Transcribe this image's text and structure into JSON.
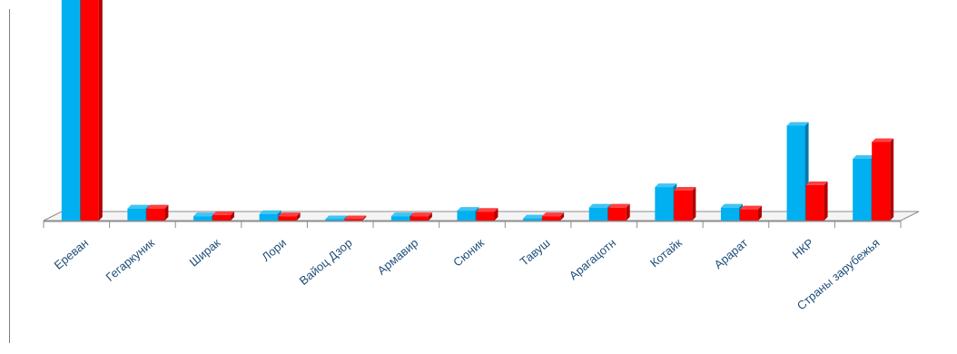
{
  "chart_data": {
    "type": "bar",
    "style": "3d-clustered-column",
    "categories": [
      "Ереван",
      "Гегаркуник",
      "Ширак",
      "Лори",
      "Вайоц Дзор",
      "Армавир",
      "Сюник",
      "Тавуш",
      "Арагацотн",
      "Котайк",
      "Арарат",
      "НКР",
      "Страны зарубежья"
    ],
    "series": [
      {
        "color": "#00b0f0",
        "values": [
          100,
          5.5,
          2.0,
          3.0,
          0.5,
          2.0,
          4.5,
          1.0,
          5.9,
          15.2,
          5.9,
          43.0,
          28.0
        ]
      },
      {
        "color": "#ff0000",
        "values": [
          100,
          5.5,
          2.5,
          2.0,
          0.5,
          2.0,
          4.0,
          2.0,
          5.9,
          13.6,
          5.1,
          16.1,
          35.6
        ]
      }
    ],
    "ylim": [
      0,
      100
    ],
    "grid": false,
    "legend": "none",
    "axis_color": "#8c8c8c",
    "label_color": "#1f4e79"
  }
}
